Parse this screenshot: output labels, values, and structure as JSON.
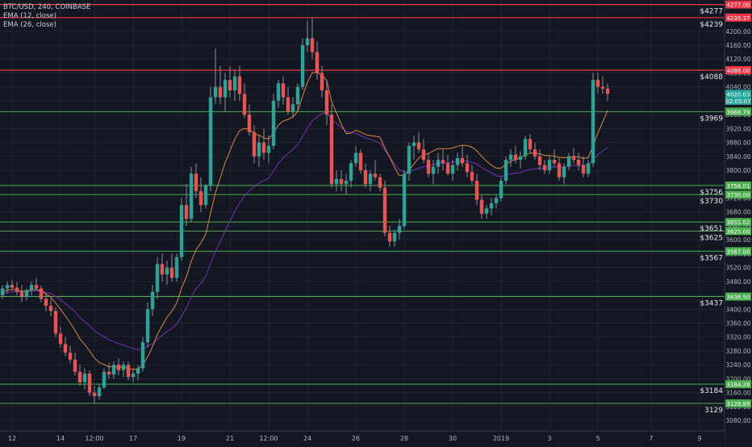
{
  "legend": {
    "symbol": "BTC/USD, 240, COINBASE",
    "ema12": "EMA (12, close)",
    "ema26": "EMA (26, close)"
  },
  "colors": {
    "background": "#131722",
    "grid": "#2a2e39",
    "up": "#26a69a",
    "down": "#ef5350",
    "wick": "#8a8f98",
    "ema12": "#e0883c",
    "ema26": "#7b2fbf",
    "support": "#4caf50",
    "resistance": "#f23645",
    "last_price": "#26a69a",
    "countdown": "#26a69a",
    "axis_text": "#b2b5be"
  },
  "chart_data": {
    "type": "candlestick",
    "symbol": "BTC/USD",
    "interval": "240",
    "exchange": "COINBASE",
    "y_range": [
      3050,
      4290
    ],
    "y_ticks": [
      3080,
      3120,
      3160,
      3200,
      3240,
      3280,
      3320,
      3360,
      3400,
      3440,
      3480,
      3520,
      3560,
      3600,
      3640,
      3680,
      3720,
      3760,
      3800,
      3840,
      3880,
      3920,
      3960,
      4000,
      4040,
      4080,
      4120,
      4160,
      4200
    ],
    "x_ticks": [
      {
        "label": "12",
        "index": 2
      },
      {
        "label": "14",
        "index": 12
      },
      {
        "label": "12:00",
        "index": 19
      },
      {
        "label": "17",
        "index": 27
      },
      {
        "label": "19",
        "index": 37
      },
      {
        "label": "21",
        "index": 47
      },
      {
        "label": "12:00",
        "index": 55
      },
      {
        "label": "24",
        "index": 63
      },
      {
        "label": "26",
        "index": 73
      },
      {
        "label": "28",
        "index": 83
      },
      {
        "label": "30",
        "index": 93
      },
      {
        "label": "2019",
        "index": 103
      },
      {
        "label": "3",
        "index": 113
      },
      {
        "label": "5",
        "index": 123
      },
      {
        "label": "7",
        "index": 134
      },
      {
        "label": "9",
        "index": 144
      }
    ],
    "candles": [
      [
        3440,
        3470,
        3430,
        3460
      ],
      [
        3460,
        3480,
        3445,
        3470
      ],
      [
        3470,
        3485,
        3455,
        3462
      ],
      [
        3462,
        3478,
        3440,
        3450
      ],
      [
        3450,
        3470,
        3420,
        3435
      ],
      [
        3435,
        3460,
        3425,
        3455
      ],
      [
        3455,
        3480,
        3440,
        3470
      ],
      [
        3470,
        3490,
        3455,
        3460
      ],
      [
        3460,
        3468,
        3420,
        3430
      ],
      [
        3430,
        3445,
        3395,
        3410
      ],
      [
        3410,
        3430,
        3380,
        3395
      ],
      [
        3395,
        3405,
        3320,
        3330
      ],
      [
        3330,
        3350,
        3290,
        3300
      ],
      [
        3300,
        3320,
        3265,
        3275
      ],
      [
        3275,
        3295,
        3245,
        3255
      ],
      [
        3255,
        3275,
        3210,
        3220
      ],
      [
        3220,
        3240,
        3180,
        3190
      ],
      [
        3190,
        3230,
        3170,
        3215
      ],
      [
        3215,
        3225,
        3150,
        3160
      ],
      [
        3160,
        3180,
        3130,
        3150
      ],
      [
        3150,
        3185,
        3140,
        3175
      ],
      [
        3175,
        3230,
        3170,
        3220
      ],
      [
        3220,
        3245,
        3200,
        3212
      ],
      [
        3212,
        3250,
        3200,
        3240
      ],
      [
        3240,
        3260,
        3210,
        3225
      ],
      [
        3225,
        3250,
        3205,
        3240
      ],
      [
        3240,
        3250,
        3195,
        3205
      ],
      [
        3205,
        3230,
        3190,
        3215
      ],
      [
        3215,
        3240,
        3195,
        3230
      ],
      [
        3230,
        3320,
        3220,
        3305
      ],
      [
        3305,
        3420,
        3290,
        3400
      ],
      [
        3400,
        3470,
        3380,
        3450
      ],
      [
        3450,
        3550,
        3430,
        3530
      ],
      [
        3530,
        3560,
        3480,
        3500
      ],
      [
        3500,
        3540,
        3470,
        3520
      ],
      [
        3520,
        3560,
        3480,
        3490
      ],
      [
        3490,
        3560,
        3480,
        3550
      ],
      [
        3550,
        3720,
        3540,
        3700
      ],
      [
        3700,
        3760,
        3640,
        3660
      ],
      [
        3660,
        3810,
        3650,
        3790
      ],
      [
        3790,
        3820,
        3720,
        3740
      ],
      [
        3740,
        3780,
        3680,
        3700
      ],
      [
        3700,
        3760,
        3690,
        3755
      ],
      [
        3755,
        4040,
        3740,
        4010
      ],
      [
        4010,
        4150,
        3990,
        4040
      ],
      [
        4040,
        4100,
        3990,
        4010
      ],
      [
        4010,
        4080,
        3970,
        4060
      ],
      [
        4060,
        4100,
        4010,
        4030
      ],
      [
        4030,
        4090,
        4000,
        4070
      ],
      [
        4070,
        4100,
        4000,
        4020
      ],
      [
        4020,
        4050,
        3950,
        3960
      ],
      [
        3960,
        3990,
        3900,
        3910
      ],
      [
        3910,
        3930,
        3820,
        3840
      ],
      [
        3840,
        3900,
        3810,
        3880
      ],
      [
        3880,
        3920,
        3830,
        3850
      ],
      [
        3850,
        3900,
        3820,
        3870
      ],
      [
        3870,
        4020,
        3860,
        4000
      ],
      [
        4000,
        4060,
        3980,
        4050
      ],
      [
        4050,
        4070,
        3990,
        4010
      ],
      [
        4010,
        4040,
        3960,
        3970
      ],
      [
        3970,
        4010,
        3950,
        3990
      ],
      [
        3990,
        4050,
        3970,
        4040
      ],
      [
        4040,
        4180,
        4030,
        4160
      ],
      [
        4160,
        4230,
        4140,
        4180
      ],
      [
        4180,
        4240,
        4120,
        4140
      ],
      [
        4140,
        4170,
        4060,
        4080
      ],
      [
        4080,
        4100,
        4010,
        4030
      ],
      [
        4030,
        4060,
        3930,
        3960
      ],
      [
        3960,
        3990,
        3750,
        3760
      ],
      [
        3760,
        3800,
        3740,
        3775
      ],
      [
        3775,
        3800,
        3740,
        3760
      ],
      [
        3760,
        3790,
        3730,
        3770
      ],
      [
        3770,
        3830,
        3750,
        3820
      ],
      [
        3820,
        3870,
        3810,
        3850
      ],
      [
        3850,
        3860,
        3790,
        3800
      ],
      [
        3800,
        3820,
        3750,
        3760
      ],
      [
        3760,
        3800,
        3740,
        3790
      ],
      [
        3790,
        3830,
        3770,
        3780
      ],
      [
        3780,
        3790,
        3740,
        3750
      ],
      [
        3750,
        3770,
        3610,
        3620
      ],
      [
        3620,
        3640,
        3580,
        3595
      ],
      [
        3595,
        3630,
        3580,
        3620
      ],
      [
        3620,
        3660,
        3600,
        3640
      ],
      [
        3640,
        3800,
        3630,
        3790
      ],
      [
        3790,
        3880,
        3770,
        3870
      ],
      [
        3870,
        3900,
        3830,
        3880
      ],
      [
        3880,
        3910,
        3850,
        3860
      ],
      [
        3860,
        3890,
        3820,
        3830
      ],
      [
        3830,
        3850,
        3780,
        3790
      ],
      [
        3790,
        3830,
        3760,
        3810
      ],
      [
        3810,
        3850,
        3790,
        3830
      ],
      [
        3830,
        3860,
        3800,
        3820
      ],
      [
        3820,
        3845,
        3785,
        3790
      ],
      [
        3790,
        3830,
        3770,
        3815
      ],
      [
        3815,
        3850,
        3800,
        3835
      ],
      [
        3835,
        3870,
        3810,
        3820
      ],
      [
        3820,
        3845,
        3780,
        3795
      ],
      [
        3795,
        3815,
        3760,
        3770
      ],
      [
        3770,
        3790,
        3700,
        3715
      ],
      [
        3715,
        3730,
        3660,
        3675
      ],
      [
        3675,
        3700,
        3660,
        3690
      ],
      [
        3690,
        3720,
        3670,
        3705
      ],
      [
        3705,
        3730,
        3690,
        3720
      ],
      [
        3720,
        3780,
        3710,
        3770
      ],
      [
        3770,
        3840,
        3760,
        3830
      ],
      [
        3830,
        3860,
        3810,
        3845
      ],
      [
        3845,
        3870,
        3820,
        3830
      ],
      [
        3830,
        3855,
        3805,
        3840
      ],
      [
        3840,
        3900,
        3830,
        3890
      ],
      [
        3890,
        3905,
        3850,
        3860
      ],
      [
        3860,
        3880,
        3830,
        3840
      ],
      [
        3840,
        3860,
        3800,
        3815
      ],
      [
        3815,
        3830,
        3790,
        3800
      ],
      [
        3800,
        3840,
        3790,
        3830
      ],
      [
        3830,
        3860,
        3810,
        3820
      ],
      [
        3820,
        3835,
        3770,
        3780
      ],
      [
        3780,
        3820,
        3760,
        3810
      ],
      [
        3810,
        3850,
        3800,
        3840
      ],
      [
        3840,
        3865,
        3820,
        3830
      ],
      [
        3830,
        3850,
        3800,
        3815
      ],
      [
        3815,
        3840,
        3780,
        3790
      ],
      [
        3790,
        3830,
        3780,
        3820
      ],
      [
        3820,
        4080,
        3810,
        4060
      ],
      [
        4060,
        4080,
        4020,
        4040
      ],
      [
        4040,
        4070,
        4020,
        4035
      ],
      [
        4035,
        4050,
        4000,
        4020
      ]
    ],
    "ema12": [
      3450,
      3455,
      3457,
      3456,
      3452,
      3453,
      3456,
      3457,
      3453,
      3444,
      3435,
      3418,
      3400,
      3381,
      3361,
      3339,
      3315,
      3299,
      3280,
      3260,
      3247,
      3241,
      3234,
      3235,
      3233,
      3234,
      3229,
      3227,
      3228,
      3240,
      3263,
      3292,
      3327,
      3353,
      3377,
      3394,
      3418,
      3461,
      3493,
      3538,
      3571,
      3591,
      3616,
      3677,
      3735,
      3778,
      3822,
      3856,
      3890,
      3914,
      3920,
      3918,
      3905,
      3901,
      3893,
      3890,
      3907,
      3930,
      3942,
      3946,
      3954,
      3969,
      4013,
      4053,
      4081,
      4081,
      4075,
      4058,
      3998,
      3965,
      3933,
      3905,
      3907,
      3915,
      3910,
      3903,
      3900,
      3898,
      3895,
      3864,
      3838,
      3808,
      3785,
      3784,
      3800,
      3818,
      3835,
      3845,
      3848,
      3856,
      3862,
      3862,
      3862,
      3864,
      3869,
      3872,
      3871,
      3866,
      3856,
      3840,
      3826,
      3815,
      3806,
      3806,
      3817,
      3826,
      3831,
      3835,
      3846,
      3849,
      3850,
      3847,
      3843,
      3842,
      3841,
      3837,
      3836,
      3838,
      3840,
      3838,
      3834,
      3836,
      3870,
      3907,
      3939,
      3972
    ],
    "ema26": [
      3445,
      3448,
      3450,
      3451,
      3451,
      3451,
      3452,
      3453,
      3452,
      3449,
      3446,
      3437,
      3427,
      3417,
      3405,
      3392,
      3376,
      3365,
      3352,
      3338,
      3329,
      3321,
      3312,
      3307,
      3301,
      3297,
      3292,
      3287,
      3284,
      3287,
      3293,
      3301,
      3313,
      3325,
      3336,
      3345,
      3357,
      3380,
      3404,
      3435,
      3459,
      3475,
      3495,
      3532,
      3567,
      3595,
      3625,
      3653,
      3682,
      3707,
      3726,
      3741,
      3752,
      3763,
      3770,
      3777,
      3798,
      3820,
      3836,
      3848,
      3860,
      3874,
      3897,
      3921,
      3942,
      3954,
      3963,
      3967,
      3947,
      3935,
      3923,
      3912,
      3908,
      3906,
      3900,
      3893,
      3889,
      3884,
      3878,
      3857,
      3838,
      3818,
      3801,
      3795,
      3797,
      3801,
      3806,
      3810,
      3812,
      3816,
      3820,
      3821,
      3822,
      3823,
      3826,
      3827,
      3826,
      3823,
      3818,
      3808,
      3800,
      3792,
      3785,
      3782,
      3786,
      3790,
      3792,
      3793,
      3799,
      3802,
      3805,
      3806,
      3806,
      3808,
      3810,
      3809,
      3810,
      3812,
      3814,
      3814,
      3814,
      3814,
      3831,
      3845,
      3856,
      3866
    ],
    "support_lines": [
      3968.79,
      3756.01,
      3730.0,
      3651.02,
      3625.0,
      3567.0,
      3436.5,
      3184.28,
      3128.89
    ],
    "resistance_lines": [
      4277.0,
      4239.37,
      4088.0
    ],
    "last_price": 4020.03,
    "countdown": "02:05:07",
    "left_labels": [
      {
        "text": "$4277",
        "price": 4277.0
      },
      {
        "text": "$4239",
        "price": 4239.37
      },
      {
        "text": "$4088",
        "price": 4088.0
      },
      {
        "text": "$3969",
        "price": 3968.79
      },
      {
        "text": "$3756",
        "price": 3756.01
      },
      {
        "text": "$3730",
        "price": 3730.0
      },
      {
        "text": "$3651",
        "price": 3651.02
      },
      {
        "text": "$3625",
        "price": 3625.0
      },
      {
        "text": "$3567",
        "price": 3567.0
      },
      {
        "text": "$3437",
        "price": 3436.5
      },
      {
        "text": "$3184",
        "price": 3184.28
      },
      {
        "text": "3129",
        "price": 3128.89
      }
    ],
    "right_badges": [
      {
        "text": "4277.00",
        "price": 4277.0,
        "kind": "resistance"
      },
      {
        "text": "4239.37",
        "price": 4239.37,
        "kind": "resistance"
      },
      {
        "text": "4088.00",
        "price": 4088.0,
        "kind": "resistance"
      },
      {
        "text": "4020.03",
        "price": 4020.03,
        "kind": "last"
      },
      {
        "text": "02:05:07",
        "price": 4000,
        "kind": "countdown"
      },
      {
        "text": "3968.79",
        "price": 3968.79,
        "kind": "support"
      },
      {
        "text": "3756.01",
        "price": 3756.01,
        "kind": "support"
      },
      {
        "text": "3730.00",
        "price": 3730.0,
        "kind": "support"
      },
      {
        "text": "3651.02",
        "price": 3651.02,
        "kind": "support"
      },
      {
        "text": "3625.00",
        "price": 3625.0,
        "kind": "support"
      },
      {
        "text": "3567.00",
        "price": 3567.0,
        "kind": "support"
      },
      {
        "text": "3436.50",
        "price": 3436.5,
        "kind": "support"
      },
      {
        "text": "3184.28",
        "price": 3184.28,
        "kind": "support"
      },
      {
        "text": "3128.89",
        "price": 3128.89,
        "kind": "support"
      }
    ]
  }
}
